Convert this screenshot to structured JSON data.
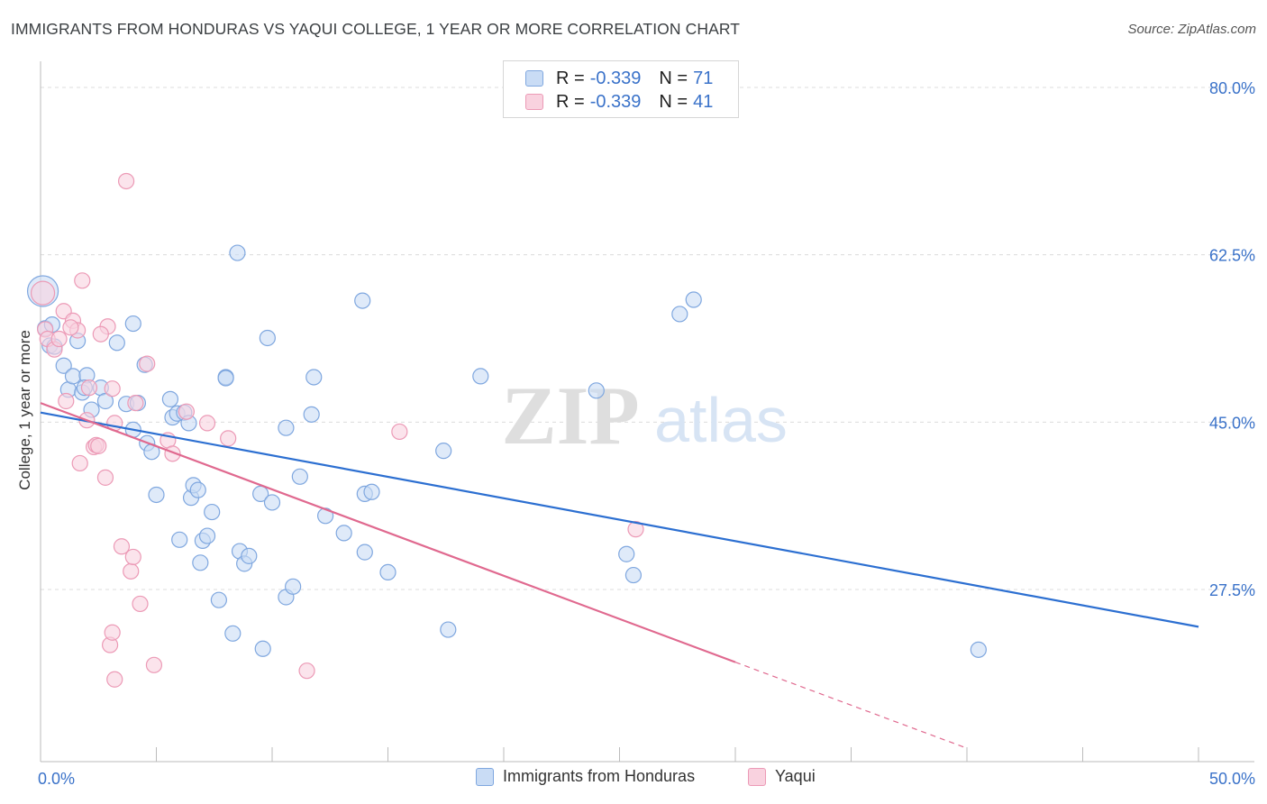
{
  "title": "IMMIGRANTS FROM HONDURAS VS YAQUI COLLEGE, 1 YEAR OR MORE CORRELATION CHART",
  "source": "Source: ZipAtlas.com",
  "watermark": {
    "zip": "ZIP",
    "atlas": "atlas"
  },
  "legend": {
    "rows": [
      {
        "r_label": "R = ",
        "r_value": "-0.339",
        "n_label": "N = ",
        "n_value": "71"
      },
      {
        "r_label": "R = ",
        "r_value": "-0.339",
        "n_label": "N = ",
        "n_value": "41"
      }
    ]
  },
  "colors": {
    "blue_fill": "#c9dcf5",
    "blue_stroke": "#7fa7df",
    "blue_line": "#2c6fd1",
    "pink_fill": "#f9d2df",
    "pink_stroke": "#ec9ab6",
    "pink_line": "#e0698f",
    "axis_label": "#3a72c9"
  },
  "chart_data": {
    "type": "scatter",
    "title": "IMMIGRANTS FROM HONDURAS VS YAQUI COLLEGE, 1 YEAR OR MORE CORRELATION CHART",
    "xlabel": "",
    "ylabel": "College, 1 year or more",
    "xlim": [
      0,
      50
    ],
    "ylim": [
      10,
      82
    ],
    "x_tick_labels": [
      "0.0%",
      "50.0%"
    ],
    "y_ticks": [
      27.5,
      45.0,
      62.5,
      80.0
    ],
    "y_tick_labels": [
      "27.5%",
      "45.0%",
      "62.5%",
      "80.0%"
    ],
    "grid": true,
    "legend_position": "bottom",
    "series": [
      {
        "name": "Immigrants from Honduras",
        "points": [
          [
            0.1,
            58.7
          ],
          [
            0.2,
            54.8
          ],
          [
            0.5,
            55.2
          ],
          [
            0.4,
            53.0
          ],
          [
            0.6,
            52.9
          ],
          [
            1.0,
            50.9
          ],
          [
            1.2,
            48.4
          ],
          [
            1.4,
            49.8
          ],
          [
            1.6,
            53.5
          ],
          [
            1.8,
            48.1
          ],
          [
            2.0,
            49.9
          ],
          [
            1.9,
            48.6
          ],
          [
            2.2,
            46.3
          ],
          [
            2.6,
            48.6
          ],
          [
            2.8,
            47.2
          ],
          [
            3.3,
            53.3
          ],
          [
            3.7,
            46.9
          ],
          [
            4.0,
            44.2
          ],
          [
            4.2,
            47.0
          ],
          [
            4.5,
            51.0
          ],
          [
            4.6,
            42.8
          ],
          [
            4.8,
            41.9
          ],
          [
            5.0,
            37.4
          ],
          [
            5.6,
            47.4
          ],
          [
            5.7,
            45.5
          ],
          [
            5.9,
            45.9
          ],
          [
            6.0,
            32.7
          ],
          [
            6.2,
            46.0
          ],
          [
            6.4,
            44.9
          ],
          [
            6.5,
            37.1
          ],
          [
            6.6,
            38.4
          ],
          [
            6.8,
            37.9
          ],
          [
            6.9,
            30.3
          ],
          [
            7.0,
            32.6
          ],
          [
            7.2,
            33.1
          ],
          [
            7.4,
            35.6
          ],
          [
            7.7,
            26.4
          ],
          [
            8.0,
            49.7
          ],
          [
            8.3,
            22.9
          ],
          [
            8.5,
            62.7
          ],
          [
            8.6,
            31.5
          ],
          [
            8.8,
            30.2
          ],
          [
            9.0,
            31.0
          ],
          [
            9.5,
            37.5
          ],
          [
            9.6,
            21.3
          ],
          [
            10.0,
            36.6
          ],
          [
            10.6,
            26.7
          ],
          [
            10.9,
            27.8
          ],
          [
            11.2,
            39.3
          ],
          [
            11.7,
            45.8
          ],
          [
            11.8,
            49.7
          ],
          [
            12.3,
            35.2
          ],
          [
            13.1,
            33.4
          ],
          [
            14.0,
            37.5
          ],
          [
            14.3,
            37.7
          ],
          [
            14.0,
            31.4
          ],
          [
            15.0,
            29.3
          ],
          [
            17.4,
            42.0
          ],
          [
            17.6,
            23.3
          ],
          [
            19.0,
            49.8
          ],
          [
            24.0,
            48.3
          ],
          [
            25.3,
            31.2
          ],
          [
            25.6,
            29.0
          ],
          [
            27.6,
            56.3
          ],
          [
            28.2,
            57.8
          ],
          [
            40.5,
            21.2
          ],
          [
            4.0,
            55.3
          ],
          [
            10.6,
            44.4
          ],
          [
            9.8,
            53.8
          ],
          [
            8.0,
            49.6
          ],
          [
            13.9,
            57.7
          ]
        ]
      },
      {
        "name": "Yaqui",
        "points": [
          [
            0.1,
            58.5
          ],
          [
            0.2,
            54.7
          ],
          [
            0.3,
            53.7
          ],
          [
            0.6,
            52.6
          ],
          [
            0.8,
            53.7
          ],
          [
            1.0,
            56.6
          ],
          [
            1.1,
            47.2
          ],
          [
            1.4,
            55.6
          ],
          [
            1.6,
            54.6
          ],
          [
            1.7,
            40.7
          ],
          [
            1.8,
            59.8
          ],
          [
            2.0,
            45.2
          ],
          [
            2.1,
            48.6
          ],
          [
            2.3,
            42.4
          ],
          [
            2.4,
            42.6
          ],
          [
            2.5,
            42.5
          ],
          [
            2.8,
            39.2
          ],
          [
            2.9,
            55.0
          ],
          [
            3.1,
            48.5
          ],
          [
            3.2,
            44.9
          ],
          [
            3.5,
            32.0
          ],
          [
            3.7,
            70.2
          ],
          [
            3.9,
            29.4
          ],
          [
            4.0,
            30.9
          ],
          [
            4.3,
            26.0
          ],
          [
            4.6,
            51.1
          ],
          [
            4.9,
            19.6
          ],
          [
            5.5,
            43.1
          ],
          [
            5.7,
            41.7
          ],
          [
            6.3,
            46.1
          ],
          [
            7.2,
            44.9
          ],
          [
            8.1,
            43.3
          ],
          [
            3.0,
            21.7
          ],
          [
            3.1,
            23.0
          ],
          [
            3.2,
            18.1
          ],
          [
            11.5,
            19.0
          ],
          [
            15.5,
            44.0
          ],
          [
            25.7,
            33.8
          ],
          [
            4.1,
            47.0
          ],
          [
            1.3,
            54.9
          ],
          [
            2.6,
            54.2
          ]
        ]
      }
    ],
    "trend_lines": [
      {
        "series": "Immigrants from Honduras",
        "x": [
          0,
          50
        ],
        "y": [
          46.0,
          23.6
        ],
        "style": "solid"
      },
      {
        "series": "Yaqui",
        "x": [
          0,
          30
        ],
        "y": [
          47.0,
          19.9
        ],
        "style": "solid"
      },
      {
        "series": "Yaqui",
        "x": [
          30,
          40
        ],
        "y": [
          19.9,
          10.9
        ],
        "style": "dashed"
      }
    ]
  },
  "bottom_legend": {
    "items": [
      {
        "label": "Immigrants from Honduras"
      },
      {
        "label": "Yaqui"
      }
    ]
  }
}
